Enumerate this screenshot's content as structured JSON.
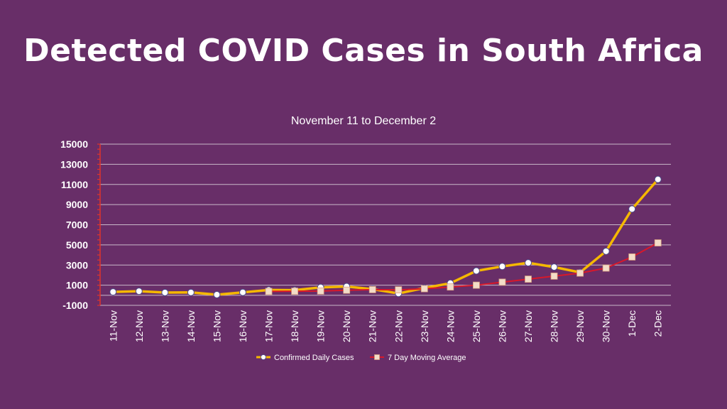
{
  "slide": {
    "title": "Detected COVID Cases in South Africa"
  },
  "colors": {
    "background": "#682e68",
    "gridline": "#c9b8c9",
    "axis_tick": "#e0342a",
    "confirmed_line": "#f5b800",
    "moving_average_line": "#d8182a",
    "confirmed_marker": "#ffffff",
    "moving_average_marker": "#f3dcc8"
  },
  "chart_data": {
    "type": "line",
    "title": "November 11 to December 2",
    "xlabel": "",
    "ylabel": "",
    "categories": [
      "11-Nov",
      "12-Nov",
      "13-Nov",
      "14-Nov",
      "15-Nov",
      "16-Nov",
      "17-Nov",
      "18-Nov",
      "19-Nov",
      "20-Nov",
      "21-Nov",
      "22-Nov",
      "23-Nov",
      "24-Nov",
      "25-Nov",
      "26-Nov",
      "27-Nov",
      "28-Nov",
      "29-Nov",
      "30-Nov",
      "1-Dec",
      "2-Dec"
    ],
    "ylim": [
      -1000,
      15000
    ],
    "yticks": [
      "15000",
      "13000",
      "11000",
      "9000",
      "7000",
      "5000",
      "3000",
      "1000",
      "-1000"
    ],
    "ytick_values": [
      15000,
      13000,
      11000,
      9000,
      7000,
      5000,
      3000,
      1000,
      -1000
    ],
    "grid": true,
    "legend_position": "bottom",
    "series": [
      {
        "name": "Confirmed Daily Cases",
        "color": "#f5b800",
        "marker": "circle",
        "values": [
          330,
          400,
          270,
          280,
          60,
          290,
          520,
          510,
          780,
          870,
          610,
          180,
          720,
          1200,
          2420,
          2860,
          3220,
          2800,
          2270,
          4370,
          8560,
          11500
        ]
      },
      {
        "name": "7 Day Moving Average",
        "color": "#d8182a",
        "marker": "square",
        "values": [
          null,
          null,
          null,
          null,
          null,
          null,
          380,
          400,
          420,
          500,
          560,
          540,
          650,
          820,
          1000,
          1300,
          1600,
          1900,
          2200,
          2700,
          3800,
          5200
        ]
      }
    ]
  }
}
